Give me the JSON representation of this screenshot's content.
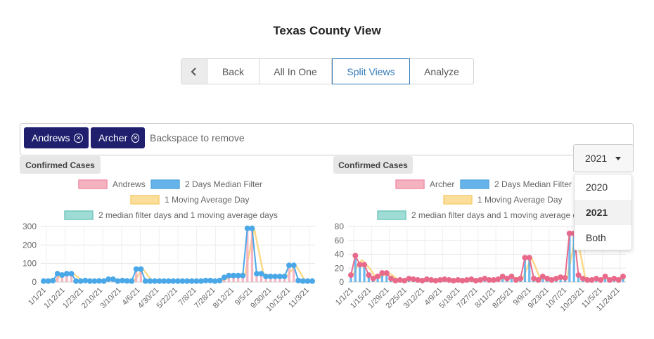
{
  "page_title": "Texas County View",
  "nav": {
    "back": "Back",
    "all_in_one": "All In One",
    "split_views": "Split Views",
    "analyze": "Analyze"
  },
  "tags": {
    "items": [
      "Andrews",
      "Archer"
    ],
    "placeholder": "Backspace to remove"
  },
  "year_dropdown": {
    "selected": "2021",
    "options": [
      "2020",
      "2021",
      "Both"
    ]
  },
  "colors": {
    "tag_bg": "#1f1f6e",
    "pink": "#f4a5b6",
    "blue": "#4aa8e8",
    "yellow": "#fcd98a",
    "teal": "#8fd6d0"
  },
  "chart_data": [
    {
      "type": "line",
      "badge": "Confirmed Cases",
      "legend": [
        "Andrews",
        "2 Days Median Filter",
        "1 Moving Average Day",
        "2 median filter days and 1 moving average days"
      ],
      "yticks": [
        0,
        100,
        200,
        300
      ],
      "ylim": [
        0,
        300
      ],
      "xticks": [
        "1/1/21",
        "1/12/21",
        "1/23/21",
        "2/10/21",
        "3/10/21",
        "4/6/21",
        "4/30/21",
        "5/22/21",
        "7/8/21",
        "7/28/21",
        "8/12/21",
        "9/5/21",
        "9/30/21",
        "10/15/21",
        "11/3/21"
      ],
      "series": [
        {
          "name": "Andrews",
          "values": [
            5,
            5,
            8,
            45,
            38,
            45,
            45,
            5,
            5,
            8,
            5,
            5,
            6,
            5,
            15,
            15,
            5,
            8,
            6,
            5,
            70,
            70,
            5,
            5,
            5,
            5,
            5,
            5,
            5,
            5,
            5,
            5,
            5,
            5,
            5,
            8,
            8,
            5,
            8,
            25,
            35,
            35,
            35,
            35,
            290,
            290,
            45,
            45,
            30,
            30,
            30,
            30,
            30,
            90,
            90,
            8,
            5,
            5,
            5
          ]
        },
        {
          "name": "2 Days Median Filter",
          "values": [
            5,
            5,
            8,
            45,
            38,
            45,
            45,
            5,
            5,
            8,
            5,
            5,
            6,
            5,
            15,
            15,
            5,
            8,
            6,
            5,
            70,
            70,
            5,
            5,
            5,
            5,
            5,
            5,
            5,
            5,
            5,
            5,
            5,
            5,
            5,
            8,
            8,
            5,
            8,
            25,
            35,
            35,
            35,
            35,
            290,
            290,
            45,
            45,
            30,
            30,
            30,
            30,
            30,
            90,
            90,
            8,
            5,
            5,
            5
          ]
        }
      ]
    },
    {
      "type": "line",
      "badge": "Confirmed Cases",
      "legend": [
        "Archer",
        "2 Days Median Filter",
        "1 Moving Average Day",
        "2 median filter days and 1 moving average d"
      ],
      "yticks": [
        0,
        20,
        40,
        60,
        80
      ],
      "ylim": [
        0,
        80
      ],
      "xticks": [
        "1/1/21",
        "1/15/21",
        "1/29/21",
        "2/25/21",
        "3/12/21",
        "4/9/21",
        "5/18/21",
        "7/27/21",
        "8/11/21",
        "8/25/21",
        "9/9/21",
        "9/23/21",
        "10/7/21",
        "10/23/21",
        "11/5/21",
        "11/24/21"
      ],
      "series": [
        {
          "name": "Archer",
          "values": [
            10,
            38,
            25,
            25,
            10,
            5,
            8,
            13,
            13,
            5,
            2,
            3,
            2,
            5,
            4,
            3,
            2,
            4,
            3,
            2,
            3,
            4,
            3,
            2,
            3,
            2,
            3,
            4,
            2,
            3,
            5,
            3,
            3,
            4,
            8,
            5,
            8,
            3,
            5,
            35,
            35,
            5,
            3,
            8,
            5,
            3,
            5,
            7,
            6,
            70,
            70,
            10,
            5,
            3,
            3,
            5,
            3,
            8,
            3,
            5,
            3,
            8
          ]
        },
        {
          "name": "2 Days Median Filter",
          "values": [
            10,
            38,
            25,
            25,
            10,
            5,
            8,
            13,
            13,
            5,
            2,
            3,
            2,
            5,
            4,
            3,
            2,
            4,
            3,
            2,
            3,
            4,
            3,
            2,
            3,
            2,
            3,
            4,
            2,
            3,
            5,
            3,
            3,
            4,
            8,
            5,
            8,
            3,
            5,
            35,
            35,
            5,
            3,
            8,
            5,
            3,
            5,
            7,
            6,
            70,
            70,
            10,
            5,
            3,
            3,
            5,
            3,
            8,
            3,
            5,
            3,
            8
          ]
        }
      ]
    }
  ]
}
